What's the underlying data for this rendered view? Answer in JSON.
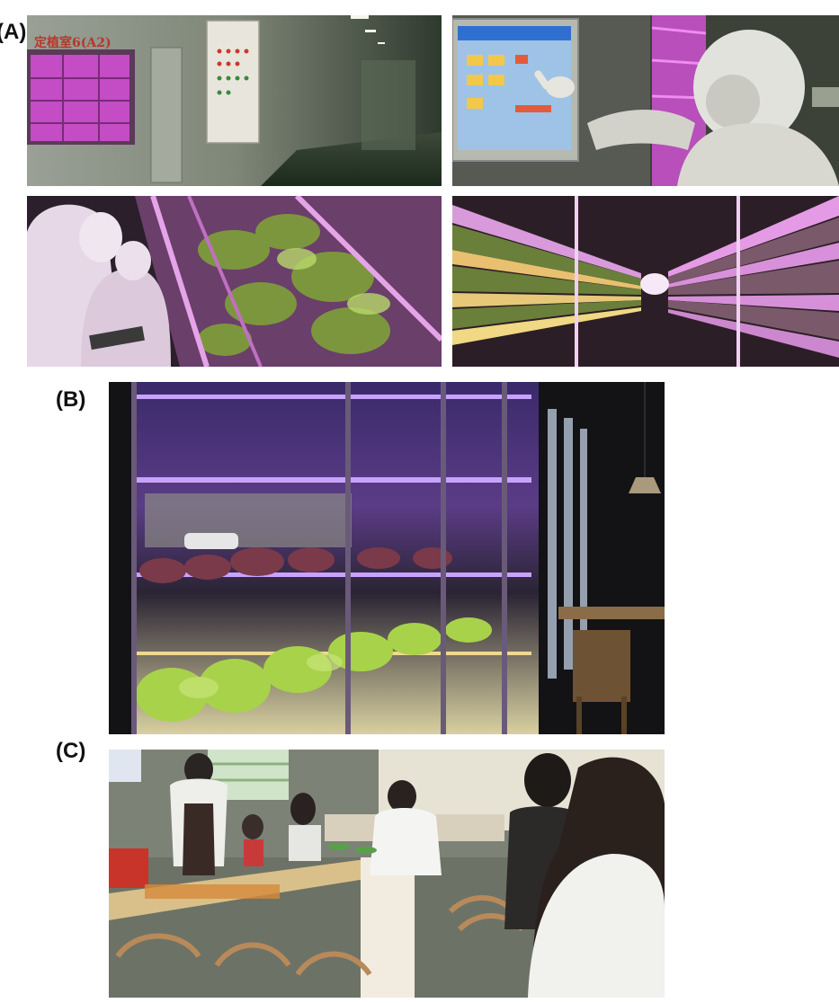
{
  "figure": {
    "panels": [
      {
        "label": "(A)",
        "photos": [
          {
            "sign_text": "定植室6(A2)"
          },
          {},
          {},
          {}
        ]
      },
      {
        "label": "(B)"
      },
      {
        "label": "(C)"
      }
    ]
  },
  "colors": {
    "grow_light_magenta": "#d64fd6",
    "grow_light_violet": "#8a5cf0",
    "lettuce_green": "#a8d24a",
    "warm_led": "#f2d37a",
    "dark_room": "#141418",
    "wall_grey": "#8e9488"
  }
}
